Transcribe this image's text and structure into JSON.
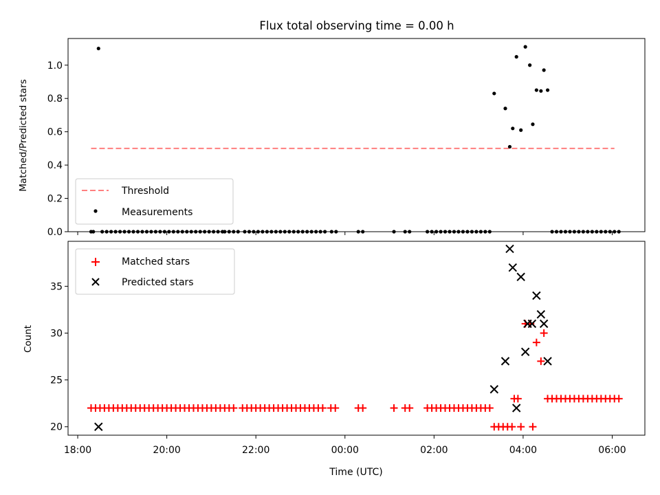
{
  "chart_data": [
    {
      "type": "scatter",
      "title": "Flux total observing time = 0.00 h",
      "ylabel": "Matched/Predicted stars",
      "xlim": [
        "17:47",
        "06:44"
      ],
      "ylim": [
        0,
        1.16
      ],
      "yticks": [
        0.0,
        0.2,
        0.4,
        0.6,
        0.8,
        1.0
      ],
      "ytick_labels": [
        "0.0",
        "0.2",
        "0.4",
        "0.6",
        "0.8",
        "1.0"
      ],
      "legend": [
        "Threshold",
        "Measurements"
      ],
      "legend_position": "lower-left",
      "threshold": {
        "name": "Threshold",
        "value": 0.5,
        "x_start": "18:18",
        "x_end": "06:03",
        "color": "#ff7f7f"
      },
      "series": [
        {
          "name": "Measurements",
          "color": "#000000",
          "points": [
            [
              "18:28",
              1.1
            ],
            [
              "18:18",
              0
            ],
            [
              "18:21",
              0
            ],
            [
              "18:33",
              0
            ],
            [
              "18:39",
              0
            ],
            [
              "18:45",
              0
            ],
            [
              "18:51",
              0
            ],
            [
              "18:57",
              0
            ],
            [
              "19:03",
              0
            ],
            [
              "19:09",
              0
            ],
            [
              "19:15",
              0
            ],
            [
              "19:21",
              0
            ],
            [
              "19:27",
              0
            ],
            [
              "19:33",
              0
            ],
            [
              "19:39",
              0
            ],
            [
              "19:45",
              0
            ],
            [
              "19:51",
              0
            ],
            [
              "19:57",
              0
            ],
            [
              "20:03",
              0
            ],
            [
              "20:09",
              0
            ],
            [
              "20:15",
              0
            ],
            [
              "20:21",
              0
            ],
            [
              "20:27",
              0
            ],
            [
              "20:33",
              0
            ],
            [
              "20:39",
              0
            ],
            [
              "20:45",
              0
            ],
            [
              "20:51",
              0
            ],
            [
              "20:57",
              0
            ],
            [
              "21:03",
              0
            ],
            [
              "21:09",
              0
            ],
            [
              "21:15",
              0
            ],
            [
              "21:18",
              0
            ],
            [
              "21:24",
              0
            ],
            [
              "21:30",
              0
            ],
            [
              "21:36",
              0
            ],
            [
              "21:45",
              0
            ],
            [
              "21:51",
              0
            ],
            [
              "21:57",
              0
            ],
            [
              "22:03",
              0
            ],
            [
              "22:09",
              0
            ],
            [
              "22:15",
              0
            ],
            [
              "22:21",
              0
            ],
            [
              "22:27",
              0
            ],
            [
              "22:33",
              0
            ],
            [
              "22:39",
              0
            ],
            [
              "22:45",
              0
            ],
            [
              "22:51",
              0
            ],
            [
              "22:57",
              0
            ],
            [
              "23:03",
              0
            ],
            [
              "23:09",
              0
            ],
            [
              "23:15",
              0
            ],
            [
              "23:21",
              0
            ],
            [
              "23:27",
              0
            ],
            [
              "23:33",
              0
            ],
            [
              "23:42",
              0
            ],
            [
              "23:48",
              0
            ],
            [
              "00:18",
              0
            ],
            [
              "00:24",
              0
            ],
            [
              "01:06",
              0
            ],
            [
              "01:21",
              0
            ],
            [
              "01:27",
              0
            ],
            [
              "01:51",
              0
            ],
            [
              "01:57",
              0
            ],
            [
              "02:03",
              0
            ],
            [
              "02:09",
              0
            ],
            [
              "02:15",
              0
            ],
            [
              "02:21",
              0
            ],
            [
              "02:27",
              0
            ],
            [
              "02:33",
              0
            ],
            [
              "02:39",
              0
            ],
            [
              "02:45",
              0
            ],
            [
              "02:51",
              0
            ],
            [
              "02:57",
              0
            ],
            [
              "03:03",
              0
            ],
            [
              "03:09",
              0
            ],
            [
              "03:15",
              0
            ],
            [
              "03:21",
              0.83
            ],
            [
              "03:36",
              0.74
            ],
            [
              "03:42",
              0.51
            ],
            [
              "03:46",
              0.62
            ],
            [
              "03:51",
              1.05
            ],
            [
              "03:57",
              0.61
            ],
            [
              "04:03",
              1.11
            ],
            [
              "04:09",
              1.0
            ],
            [
              "04:13",
              0.645
            ],
            [
              "04:18",
              0.85
            ],
            [
              "04:24",
              0.845
            ],
            [
              "04:28",
              0.97
            ],
            [
              "04:33",
              0.85
            ],
            [
              "04:39",
              0
            ],
            [
              "04:45",
              0
            ],
            [
              "04:51",
              0
            ],
            [
              "04:57",
              0
            ],
            [
              "05:03",
              0
            ],
            [
              "05:09",
              0
            ],
            [
              "05:15",
              0
            ],
            [
              "05:21",
              0
            ],
            [
              "05:27",
              0
            ],
            [
              "05:33",
              0
            ],
            [
              "05:39",
              0
            ],
            [
              "05:45",
              0
            ],
            [
              "05:51",
              0
            ],
            [
              "05:57",
              0
            ],
            [
              "06:03",
              0
            ],
            [
              "06:09",
              0
            ]
          ]
        }
      ]
    },
    {
      "type": "scatter",
      "xlabel": "Time (UTC)",
      "ylabel": "Count",
      "xlim": [
        "17:47",
        "06:44"
      ],
      "ylim": [
        19.1,
        39.8
      ],
      "xticks": [
        "18:00",
        "20:00",
        "22:00",
        "00:00",
        "02:00",
        "04:00",
        "06:00"
      ],
      "yticks": [
        20,
        25,
        30,
        35
      ],
      "legend": [
        "Matched stars",
        "Predicted stars"
      ],
      "legend_position": "upper-left",
      "series": [
        {
          "name": "Matched stars",
          "color": "#ff0000",
          "points": [
            [
              "18:18",
              22
            ],
            [
              "18:24",
              22
            ],
            [
              "18:30",
              22
            ],
            [
              "18:36",
              22
            ],
            [
              "18:42",
              22
            ],
            [
              "18:48",
              22
            ],
            [
              "18:54",
              22
            ],
            [
              "19:00",
              22
            ],
            [
              "19:06",
              22
            ],
            [
              "19:12",
              22
            ],
            [
              "19:18",
              22
            ],
            [
              "19:24",
              22
            ],
            [
              "19:30",
              22
            ],
            [
              "19:36",
              22
            ],
            [
              "19:42",
              22
            ],
            [
              "19:48",
              22
            ],
            [
              "19:54",
              22
            ],
            [
              "20:00",
              22
            ],
            [
              "20:06",
              22
            ],
            [
              "20:12",
              22
            ],
            [
              "20:18",
              22
            ],
            [
              "20:24",
              22
            ],
            [
              "20:30",
              22
            ],
            [
              "20:36",
              22
            ],
            [
              "20:42",
              22
            ],
            [
              "20:48",
              22
            ],
            [
              "20:54",
              22
            ],
            [
              "21:00",
              22
            ],
            [
              "21:06",
              22
            ],
            [
              "21:12",
              22
            ],
            [
              "21:18",
              22
            ],
            [
              "21:24",
              22
            ],
            [
              "21:30",
              22
            ],
            [
              "21:42",
              22
            ],
            [
              "21:48",
              22
            ],
            [
              "21:54",
              22
            ],
            [
              "22:00",
              22
            ],
            [
              "22:06",
              22
            ],
            [
              "22:12",
              22
            ],
            [
              "22:18",
              22
            ],
            [
              "22:24",
              22
            ],
            [
              "22:30",
              22
            ],
            [
              "22:36",
              22
            ],
            [
              "22:42",
              22
            ],
            [
              "22:48",
              22
            ],
            [
              "22:54",
              22
            ],
            [
              "23:00",
              22
            ],
            [
              "23:06",
              22
            ],
            [
              "23:12",
              22
            ],
            [
              "23:18",
              22
            ],
            [
              "23:24",
              22
            ],
            [
              "23:30",
              22
            ],
            [
              "23:41",
              22
            ],
            [
              "23:47",
              22
            ],
            [
              "00:18",
              22
            ],
            [
              "00:24",
              22
            ],
            [
              "01:06",
              22
            ],
            [
              "01:21",
              22
            ],
            [
              "01:27",
              22
            ],
            [
              "01:51",
              22
            ],
            [
              "01:57",
              22
            ],
            [
              "02:03",
              22
            ],
            [
              "02:09",
              22
            ],
            [
              "02:15",
              22
            ],
            [
              "02:21",
              22
            ],
            [
              "02:27",
              22
            ],
            [
              "02:33",
              22
            ],
            [
              "02:39",
              22
            ],
            [
              "02:45",
              22
            ],
            [
              "02:51",
              22
            ],
            [
              "02:57",
              22
            ],
            [
              "03:03",
              22
            ],
            [
              "03:09",
              22
            ],
            [
              "03:15",
              22
            ],
            [
              "03:21",
              20
            ],
            [
              "03:27",
              20
            ],
            [
              "03:33",
              20
            ],
            [
              "03:39",
              20
            ],
            [
              "03:45",
              20
            ],
            [
              "03:48",
              23
            ],
            [
              "03:53",
              23
            ],
            [
              "03:57",
              20
            ],
            [
              "04:03",
              31
            ],
            [
              "04:10",
              31
            ],
            [
              "04:13",
              20
            ],
            [
              "04:18",
              29
            ],
            [
              "04:24",
              27
            ],
            [
              "04:28",
              30
            ],
            [
              "04:33",
              23
            ],
            [
              "04:39",
              23
            ],
            [
              "04:45",
              23
            ],
            [
              "04:51",
              23
            ],
            [
              "04:57",
              23
            ],
            [
              "05:03",
              23
            ],
            [
              "05:09",
              23
            ],
            [
              "05:15",
              23
            ],
            [
              "05:21",
              23
            ],
            [
              "05:27",
              23
            ],
            [
              "05:33",
              23
            ],
            [
              "05:39",
              23
            ],
            [
              "05:45",
              23
            ],
            [
              "05:51",
              23
            ],
            [
              "05:57",
              23
            ],
            [
              "06:03",
              23
            ],
            [
              "06:09",
              23
            ]
          ]
        },
        {
          "name": "Predicted stars",
          "color": "#000000",
          "points": [
            [
              "18:28",
              20
            ],
            [
              "03:21",
              24
            ],
            [
              "03:36",
              27
            ],
            [
              "03:42",
              39
            ],
            [
              "03:46",
              37
            ],
            [
              "03:51",
              22
            ],
            [
              "03:57",
              36
            ],
            [
              "04:03",
              28
            ],
            [
              "04:06",
              31
            ],
            [
              "04:12",
              31
            ],
            [
              "04:18",
              34
            ],
            [
              "04:24",
              32
            ],
            [
              "04:28",
              31
            ],
            [
              "04:33",
              27
            ]
          ]
        }
      ]
    }
  ]
}
